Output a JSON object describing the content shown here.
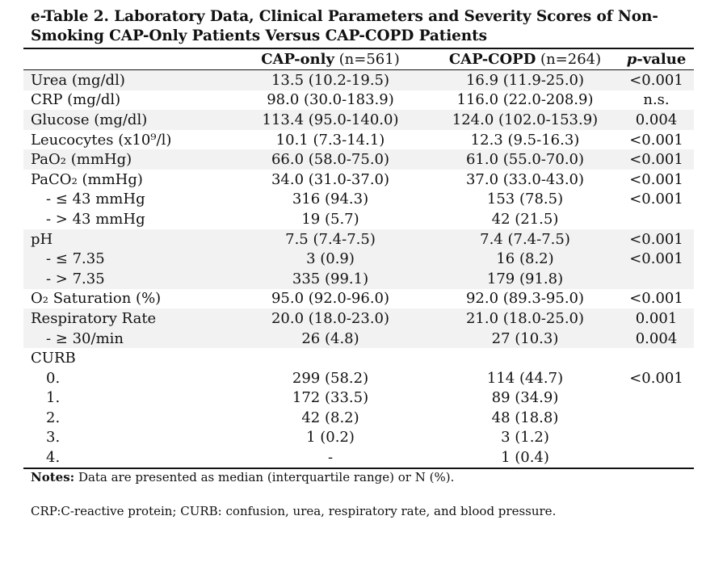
{
  "title": "e-Table 2. Laboratory Data, Clinical Parameters and Severity Scores of Non-Smoking CAP-Only Patients Versus CAP-COPD Patients",
  "header": {
    "group1_name": "CAP-only",
    "group1_n": " (n=561)",
    "group2_name": "CAP-COPD",
    "group2_n": " (n=264)",
    "p_italic": "p",
    "p_rest": "-value"
  },
  "rows": [
    {
      "label": "Urea (mg/dl)",
      "cap_only": "13.5 (10.2-19.5)",
      "cap_copd": "16.9 (11.9-25.0)",
      "p": "<0.001"
    },
    {
      "label": "CRP (mg/dl)",
      "cap_only": "98.0 (30.0-183.9)",
      "cap_copd": "116.0 (22.0-208.9)",
      "p": "n.s."
    },
    {
      "label": "Glucose (mg/dl)",
      "cap_only": "113.4 (95.0-140.0)",
      "cap_copd": "124.0 (102.0-153.9)",
      "p": "0.004"
    },
    {
      "label": "Leucocytes (x10⁹/l)",
      "cap_only": "10.1 (7.3-14.1)",
      "cap_copd": "12.3 (9.5-16.3)",
      "p": "<0.001"
    },
    {
      "label": "PaO₂ (mmHg)",
      "cap_only": "66.0 (58.0-75.0)",
      "cap_copd": "61.0 (55.0-70.0)",
      "p": "<0.001"
    },
    {
      "label": "PaCO₂ (mmHg)",
      "cap_only": "34.0 (31.0-37.0)",
      "cap_copd": "37.0 (33.0-43.0)",
      "p": "<0.001"
    },
    {
      "label": "- ≤ 43 mmHg",
      "cap_only": "316 (94.3)",
      "cap_copd": "153 (78.5)",
      "p": "<0.001"
    },
    {
      "label": "- > 43 mmHg",
      "cap_only": "19 (5.7)",
      "cap_copd": "42 (21.5)",
      "p": ""
    },
    {
      "label": "pH",
      "cap_only": "7.5 (7.4-7.5)",
      "cap_copd": "7.4 (7.4-7.5)",
      "p": "<0.001"
    },
    {
      "label": "- ≤ 7.35",
      "cap_only": "3 (0.9)",
      "cap_copd": "16 (8.2)",
      "p": "<0.001"
    },
    {
      "label": "- > 7.35",
      "cap_only": "335 (99.1)",
      "cap_copd": "179 (91.8)",
      "p": ""
    },
    {
      "label": "O₂ Saturation (%)",
      "cap_only": "95.0 (92.0-96.0)",
      "cap_copd": "92.0 (89.3-95.0)",
      "p": "<0.001"
    },
    {
      "label": "Respiratory Rate",
      "cap_only": "20.0 (18.0-23.0)",
      "cap_copd": "21.0 (18.0-25.0)",
      "p": "0.001"
    },
    {
      "label": "- ≥ 30/min",
      "cap_only": "26 (4.8)",
      "cap_copd": "27 (10.3)",
      "p": "0.004"
    },
    {
      "label": "CURB",
      "cap_only": "",
      "cap_copd": "",
      "p": ""
    },
    {
      "label": "0.",
      "cap_only": "299 (58.2)",
      "cap_copd": "114 (44.7)",
      "p": "<0.001"
    },
    {
      "label": "1.",
      "cap_only": "172 (33.5)",
      "cap_copd": "89 (34.9)",
      "p": ""
    },
    {
      "label": "2.",
      "cap_only": "42 (8.2)",
      "cap_copd": "48 (18.8)",
      "p": ""
    },
    {
      "label": "3.",
      "cap_only": "1 (0.2)",
      "cap_copd": "3 (1.2)",
      "p": ""
    },
    {
      "label": "4.",
      "cap_only": "-",
      "cap_copd": "1 (0.4)",
      "p": ""
    }
  ],
  "notes": {
    "label": "Notes:",
    "text": " Data are presented as median (interquartile range) or N (%)."
  },
  "abbreviations": "CRP:C-reactive protein; CURB: confusion, urea, respiratory rate, and blood pressure."
}
